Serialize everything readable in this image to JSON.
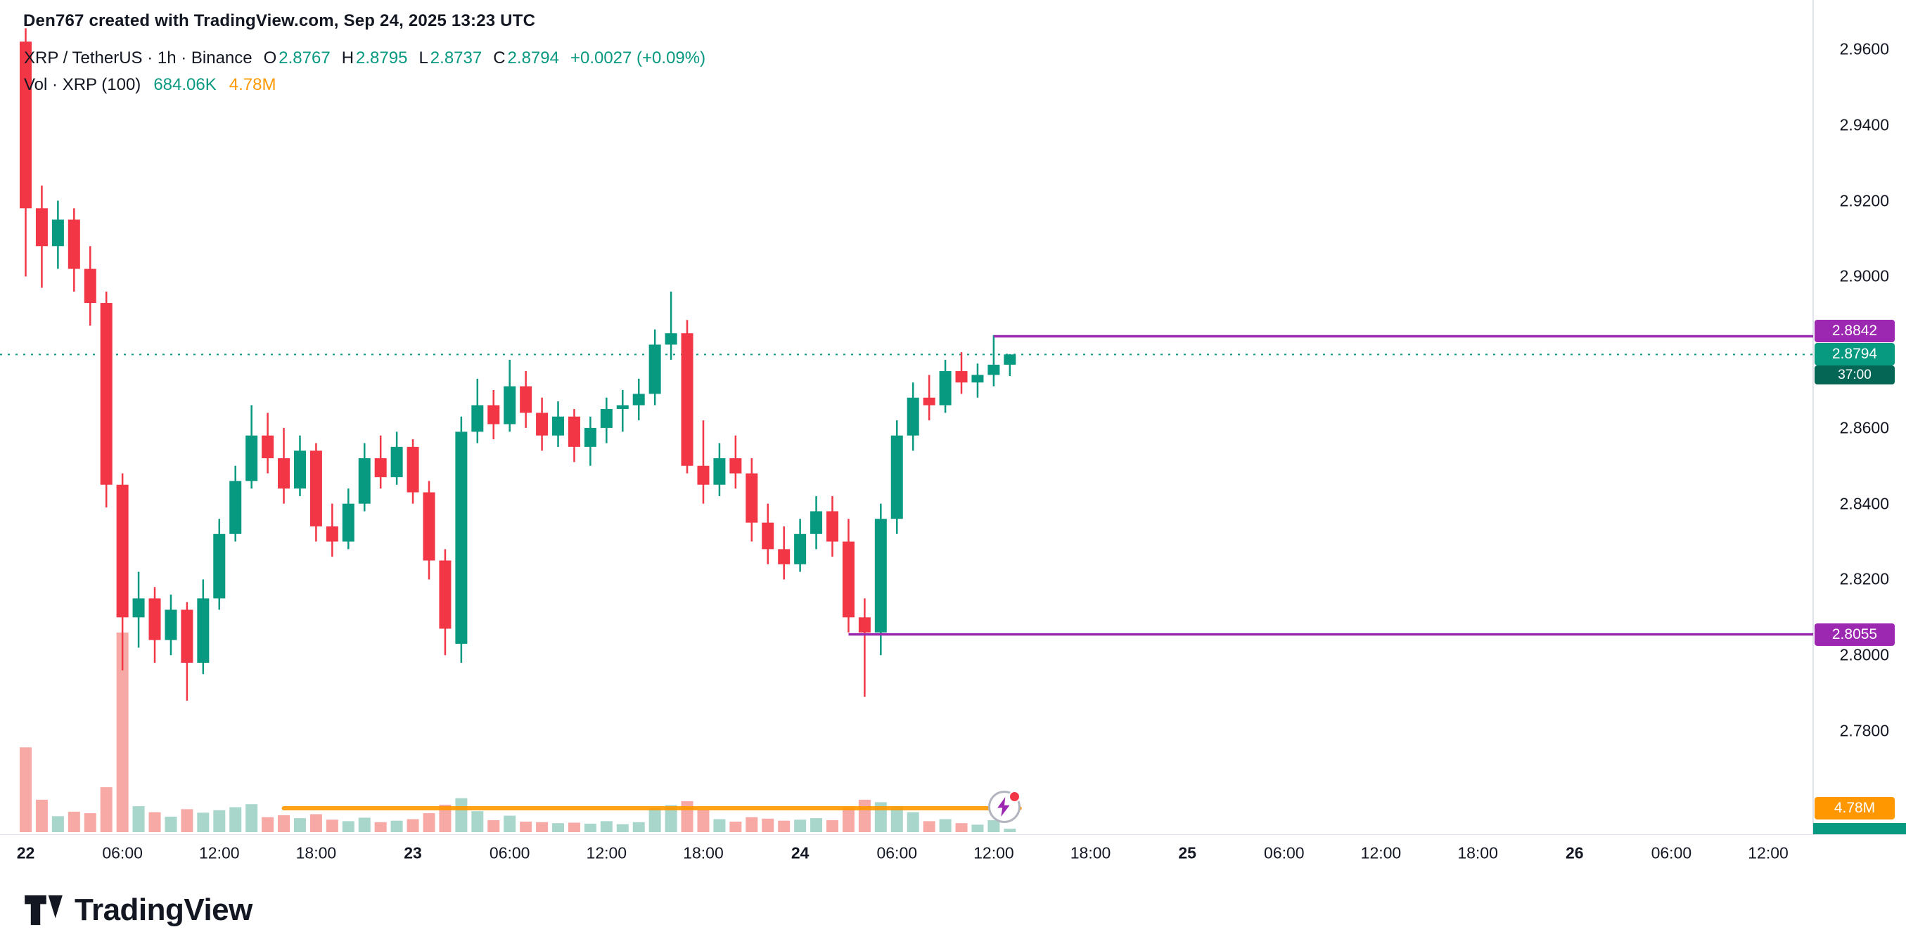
{
  "attribution": "Den767 created with TradingView.com, Sep 24, 2025 13:23 UTC",
  "legend": {
    "title": "XRP / TetherUS · 1h · Binance",
    "ohlc": {
      "o_label": "O",
      "o": "2.8767",
      "h_label": "H",
      "h": "2.8795",
      "l_label": "L",
      "l": "2.8737",
      "c_label": "C",
      "c": "2.8794",
      "change": "+0.0027 (+0.09%)"
    },
    "volume": {
      "label": "Vol · XRP (100)",
      "value": "684.06K",
      "ma": "4.78M"
    }
  },
  "price_scale": {
    "labels": [
      {
        "text": "2.9600",
        "p": 2.96
      },
      {
        "text": "2.9400",
        "p": 2.94
      },
      {
        "text": "2.9200",
        "p": 2.92
      },
      {
        "text": "2.9000",
        "p": 2.9
      },
      {
        "text": "2.8600",
        "p": 2.86
      },
      {
        "text": "2.8400",
        "p": 2.84
      },
      {
        "text": "2.8200",
        "p": 2.82
      },
      {
        "text": "2.8000",
        "p": 2.8
      },
      {
        "text": "2.7800",
        "p": 2.78
      }
    ],
    "badges": {
      "line_high": "2.8842",
      "current_price": "2.8794",
      "countdown": "37:00",
      "line_low": "2.8055",
      "volume_ma": "4.78M"
    }
  },
  "time_scale": {
    "labels": [
      {
        "text": "22",
        "i": 0,
        "day": true
      },
      {
        "text": "06:00",
        "i": 6
      },
      {
        "text": "12:00",
        "i": 12
      },
      {
        "text": "18:00",
        "i": 18
      },
      {
        "text": "23",
        "i": 24,
        "day": true
      },
      {
        "text": "06:00",
        "i": 30
      },
      {
        "text": "12:00",
        "i": 36
      },
      {
        "text": "18:00",
        "i": 42
      },
      {
        "text": "24",
        "i": 48,
        "day": true
      },
      {
        "text": "06:00",
        "i": 54
      },
      {
        "text": "12:00",
        "i": 60
      },
      {
        "text": "18:00",
        "i": 66
      },
      {
        "text": "25",
        "i": 72,
        "day": true
      },
      {
        "text": "06:00",
        "i": 78
      },
      {
        "text": "12:00",
        "i": 84
      },
      {
        "text": "18:00",
        "i": 90
      },
      {
        "text": "26",
        "i": 96,
        "day": true
      },
      {
        "text": "06:00",
        "i": 102
      },
      {
        "text": "12:00",
        "i": 108
      }
    ]
  },
  "logo": {
    "text": "TradingView"
  },
  "colors": {
    "up": "#089981",
    "down": "#F23645",
    "volume_up": "#A8D6CB",
    "volume_down": "#F7A9A6",
    "line_purple": "#9C27B0",
    "accent_orange": "#FF9800",
    "countdown_bg": "#056656",
    "text": "#131722",
    "axis_border": "#E0E3EB"
  },
  "chart_data": {
    "type": "candlestick",
    "symbol": "XRP / TetherUS",
    "exchange": "Binance",
    "interval": "1h",
    "x_axis": "hourly candles, index = hours since Sep 22 00:00 UTC",
    "ylim": [
      2.772,
      2.974
    ],
    "open": 2.8767,
    "high": 2.8795,
    "low": 2.8737,
    "close": 2.8794,
    "current_price": 2.8794,
    "change": "+0.0027 (+0.09%)",
    "volume_current": "684.06K",
    "volume_ma": 4.78,
    "volume_unit": "millions",
    "horizontal_lines": [
      {
        "price": 2.8842,
        "start_index": 60
      },
      {
        "price": 2.8055,
        "start_index": 51
      }
    ],
    "candles_format": "[open, high, low, close, volume_millions]",
    "candles": [
      [
        2.962,
        2.9655,
        2.9,
        2.918,
        17.0
      ],
      [
        2.918,
        2.924,
        2.897,
        2.908,
        6.5
      ],
      [
        2.908,
        2.92,
        2.902,
        2.915,
        3.2
      ],
      [
        2.915,
        2.918,
        2.896,
        2.902,
        4.1
      ],
      [
        2.902,
        2.908,
        2.887,
        2.893,
        3.8
      ],
      [
        2.893,
        2.896,
        2.839,
        2.845,
        9.0
      ],
      [
        2.845,
        2.848,
        2.796,
        2.81,
        40.0
      ],
      [
        2.81,
        2.822,
        2.802,
        2.815,
        5.2
      ],
      [
        2.815,
        2.818,
        2.798,
        2.804,
        4.0
      ],
      [
        2.804,
        2.816,
        2.8,
        2.812,
        3.1
      ],
      [
        2.812,
        2.814,
        2.788,
        2.798,
        4.6
      ],
      [
        2.798,
        2.82,
        2.795,
        2.815,
        3.9
      ],
      [
        2.815,
        2.836,
        2.812,
        2.832,
        4.4
      ],
      [
        2.832,
        2.85,
        2.83,
        2.846,
        5.0
      ],
      [
        2.846,
        2.866,
        2.844,
        2.858,
        5.6
      ],
      [
        2.858,
        2.864,
        2.848,
        2.852,
        3.0
      ],
      [
        2.852,
        2.86,
        2.84,
        2.844,
        3.4
      ],
      [
        2.844,
        2.858,
        2.842,
        2.854,
        2.8
      ],
      [
        2.854,
        2.856,
        2.83,
        2.834,
        3.6
      ],
      [
        2.834,
        2.84,
        2.826,
        2.83,
        2.5
      ],
      [
        2.83,
        2.844,
        2.828,
        2.84,
        2.2
      ],
      [
        2.84,
        2.856,
        2.838,
        2.852,
        2.9
      ],
      [
        2.852,
        2.858,
        2.844,
        2.847,
        2.0
      ],
      [
        2.847,
        2.859,
        2.845,
        2.855,
        2.3
      ],
      [
        2.855,
        2.857,
        2.84,
        2.843,
        2.6
      ],
      [
        2.843,
        2.846,
        2.82,
        2.825,
        3.8
      ],
      [
        2.825,
        2.828,
        2.8,
        2.807,
        5.5
      ],
      [
        2.803,
        2.863,
        2.798,
        2.859,
        6.8
      ],
      [
        2.859,
        2.873,
        2.856,
        2.866,
        4.2
      ],
      [
        2.866,
        2.87,
        2.857,
        2.861,
        2.4
      ],
      [
        2.861,
        2.878,
        2.859,
        2.871,
        3.3
      ],
      [
        2.871,
        2.875,
        2.86,
        2.864,
        2.1
      ],
      [
        2.864,
        2.868,
        2.854,
        2.858,
        2.0
      ],
      [
        2.858,
        2.867,
        2.855,
        2.863,
        1.8
      ],
      [
        2.863,
        2.865,
        2.851,
        2.855,
        1.9
      ],
      [
        2.855,
        2.863,
        2.85,
        2.86,
        1.7
      ],
      [
        2.86,
        2.868,
        2.856,
        2.865,
        2.2
      ],
      [
        2.865,
        2.87,
        2.859,
        2.866,
        1.6
      ],
      [
        2.866,
        2.873,
        2.862,
        2.869,
        2.0
      ],
      [
        2.869,
        2.886,
        2.866,
        2.882,
        4.8
      ],
      [
        2.882,
        2.896,
        2.878,
        2.885,
        5.4
      ],
      [
        2.885,
        2.8885,
        2.848,
        2.85,
        6.2
      ],
      [
        2.85,
        2.862,
        2.84,
        2.845,
        4.4
      ],
      [
        2.845,
        2.856,
        2.842,
        2.852,
        2.6
      ],
      [
        2.852,
        2.858,
        2.844,
        2.848,
        2.1
      ],
      [
        2.848,
        2.852,
        2.83,
        2.835,
        3.0
      ],
      [
        2.835,
        2.84,
        2.824,
        2.828,
        2.7
      ],
      [
        2.828,
        2.834,
        2.82,
        2.824,
        2.3
      ],
      [
        2.824,
        2.836,
        2.822,
        2.832,
        2.5
      ],
      [
        2.832,
        2.842,
        2.828,
        2.838,
        2.8
      ],
      [
        2.838,
        2.842,
        2.826,
        2.83,
        2.4
      ],
      [
        2.83,
        2.836,
        2.806,
        2.81,
        5.0
      ],
      [
        2.81,
        2.815,
        2.789,
        2.806,
        6.5
      ],
      [
        2.806,
        2.84,
        2.8,
        2.836,
        6.0
      ],
      [
        2.836,
        2.862,
        2.832,
        2.858,
        5.2
      ],
      [
        2.858,
        2.872,
        2.854,
        2.868,
        4.0
      ],
      [
        2.868,
        2.874,
        2.862,
        2.866,
        2.2
      ],
      [
        2.866,
        2.878,
        2.864,
        2.875,
        2.6
      ],
      [
        2.875,
        2.88,
        2.869,
        2.872,
        1.8
      ],
      [
        2.872,
        2.877,
        2.868,
        2.874,
        1.5
      ],
      [
        2.874,
        2.8845,
        2.871,
        2.8767,
        2.4
      ],
      [
        2.8767,
        2.8795,
        2.8737,
        2.8794,
        0.684
      ]
    ]
  }
}
